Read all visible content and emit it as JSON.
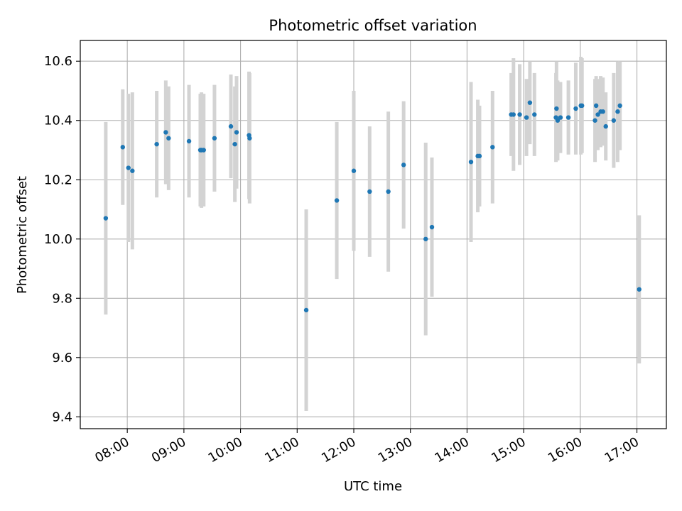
{
  "chart_data": {
    "type": "scatter",
    "title": "Photometric offset variation",
    "xlabel": "UTC time",
    "ylabel": "Photometric offset",
    "xlim": [
      7.17,
      17.52
    ],
    "ylim": [
      9.36,
      10.67
    ],
    "grid": true,
    "x_ticks": [
      8,
      9,
      10,
      11,
      12,
      13,
      14,
      15,
      16,
      17
    ],
    "x_tick_labels": [
      "08:00",
      "09:00",
      "10:00",
      "11:00",
      "12:00",
      "13:00",
      "14:00",
      "15:00",
      "16:00",
      "17:00"
    ],
    "y_ticks": [
      9.4,
      9.6,
      9.8,
      10.0,
      10.2,
      10.4,
      10.6
    ],
    "y_tick_labels": [
      "9.4",
      "9.6",
      "9.8",
      "10.0",
      "10.2",
      "10.4",
      "10.6"
    ],
    "colors": {
      "point": "#1f77b4",
      "errorbar": "#d3d3d3",
      "grid": "#b0b0b0",
      "axes": "#000000"
    },
    "series": [
      {
        "name": "Photometric offset",
        "x": [
          7.62,
          7.92,
          8.02,
          8.09,
          8.52,
          8.68,
          8.73,
          9.09,
          9.29,
          9.31,
          9.35,
          9.54,
          9.83,
          9.9,
          9.93,
          10.15,
          10.16,
          11.16,
          11.7,
          12.0,
          12.28,
          12.61,
          12.88,
          13.27,
          13.38,
          14.07,
          14.19,
          14.22,
          14.45,
          14.78,
          14.82,
          14.93,
          15.05,
          15.11,
          15.19,
          15.57,
          15.58,
          15.6,
          15.65,
          15.79,
          15.92,
          16.01,
          16.03,
          16.26,
          16.28,
          16.31,
          16.36,
          16.4,
          16.45,
          16.59,
          16.66,
          16.7,
          17.04
        ],
        "y": [
          10.07,
          10.31,
          10.24,
          10.23,
          10.32,
          10.36,
          10.34,
          10.33,
          10.3,
          10.3,
          10.3,
          10.34,
          10.38,
          10.32,
          10.36,
          10.35,
          10.34,
          9.76,
          10.13,
          10.23,
          10.16,
          10.16,
          10.25,
          10.0,
          10.04,
          10.26,
          10.28,
          10.28,
          10.31,
          10.42,
          10.42,
          10.42,
          10.41,
          10.46,
          10.42,
          10.41,
          10.44,
          10.4,
          10.41,
          10.41,
          10.44,
          10.45,
          10.45,
          10.4,
          10.45,
          10.42,
          10.43,
          10.43,
          10.38,
          10.4,
          10.43,
          10.45,
          9.83
        ],
        "err": [
          0.325,
          0.195,
          0.25,
          0.265,
          0.18,
          0.175,
          0.175,
          0.19,
          0.19,
          0.195,
          0.19,
          0.18,
          0.175,
          0.195,
          0.19,
          0.215,
          0.22,
          0.34,
          0.265,
          0.27,
          0.22,
          0.27,
          0.215,
          0.325,
          0.235,
          0.27,
          0.19,
          0.17,
          0.19,
          0.14,
          0.19,
          0.17,
          0.13,
          0.14,
          0.14,
          0.15,
          0.16,
          0.135,
          0.12,
          0.125,
          0.155,
          0.165,
          0.16,
          0.14,
          0.1,
          0.12,
          0.12,
          0.115,
          0.115,
          0.16,
          0.17,
          0.15,
          0.25
        ]
      }
    ]
  }
}
